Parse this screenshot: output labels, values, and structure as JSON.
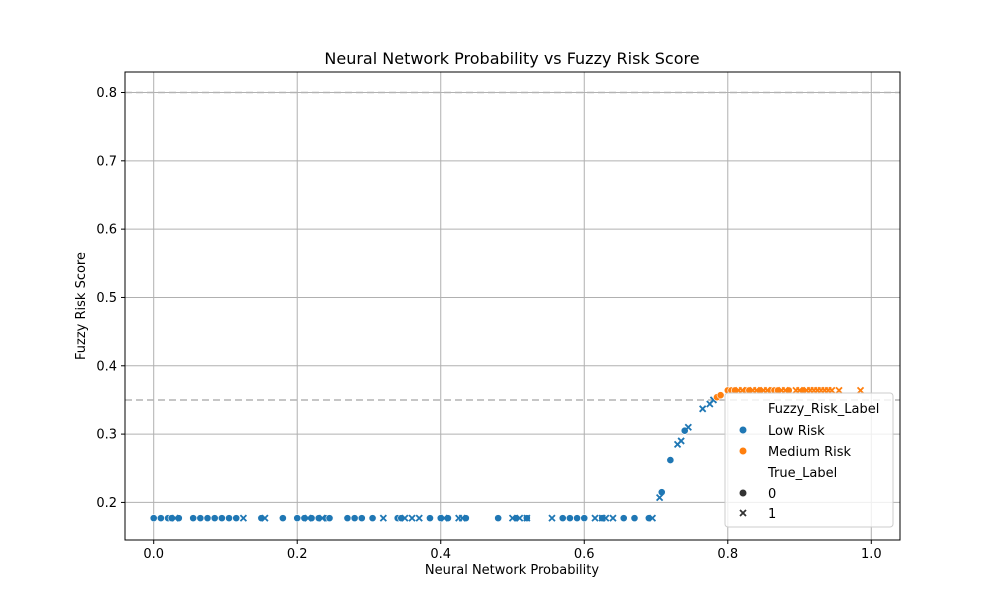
{
  "chart_data": {
    "type": "scatter",
    "title": "Neural Network Probability vs Fuzzy Risk Score",
    "xlabel": "Neural Network Probability",
    "ylabel": "Fuzzy Risk Score",
    "xlim": [
      -0.04,
      1.04
    ],
    "ylim": [
      0.145,
      0.83
    ],
    "xticks": [
      0.0,
      0.2,
      0.4,
      0.6,
      0.8,
      1.0
    ],
    "yticks": [
      0.2,
      0.3,
      0.4,
      0.5,
      0.6,
      0.7,
      0.8
    ],
    "grid": true,
    "reference_lines": [
      0.8,
      0.35
    ],
    "colors": {
      "Low Risk": "#1f77b4",
      "Medium Risk": "#ff7f0e",
      "grid": "#b0b0b0",
      "refline": "#b3b3b3"
    },
    "legend": {
      "placement": "lower-right",
      "hue_title": "Fuzzy_Risk_Label",
      "hue_items": [
        "Low Risk",
        "Medium Risk"
      ],
      "style_title": "True_Label",
      "style_items": [
        "0",
        "1"
      ]
    },
    "series": [
      {
        "label": "Low Risk",
        "marker": "circle",
        "x": [
          0.0,
          0.01,
          0.02,
          0.025,
          0.035,
          0.055,
          0.065,
          0.075,
          0.085,
          0.095,
          0.105,
          0.115,
          0.15,
          0.18,
          0.2,
          0.21,
          0.22,
          0.23,
          0.24,
          0.245,
          0.27,
          0.28,
          0.29,
          0.305,
          0.34,
          0.345,
          0.385,
          0.4,
          0.41,
          0.435,
          0.48,
          0.505,
          0.52,
          0.57,
          0.58,
          0.59,
          0.6,
          0.625,
          0.655,
          0.67,
          0.69,
          0.708,
          0.72,
          0.74
        ],
        "y": [
          0.177,
          0.177,
          0.177,
          0.177,
          0.177,
          0.177,
          0.177,
          0.177,
          0.177,
          0.177,
          0.177,
          0.177,
          0.177,
          0.177,
          0.177,
          0.177,
          0.177,
          0.177,
          0.177,
          0.177,
          0.177,
          0.177,
          0.177,
          0.177,
          0.177,
          0.177,
          0.177,
          0.177,
          0.177,
          0.177,
          0.177,
          0.177,
          0.177,
          0.177,
          0.177,
          0.177,
          0.177,
          0.177,
          0.177,
          0.177,
          0.177,
          0.215,
          0.262,
          0.305
        ]
      },
      {
        "label": "Low Risk",
        "marker": "x",
        "x": [
          0.03,
          0.125,
          0.155,
          0.215,
          0.235,
          0.32,
          0.35,
          0.36,
          0.37,
          0.405,
          0.425,
          0.43,
          0.5,
          0.51,
          0.52,
          0.555,
          0.615,
          0.625,
          0.63,
          0.64,
          0.695,
          0.705,
          0.73,
          0.735,
          0.745,
          0.765,
          0.775,
          0.78
        ],
        "y": [
          0.177,
          0.177,
          0.177,
          0.177,
          0.177,
          0.177,
          0.177,
          0.177,
          0.177,
          0.177,
          0.177,
          0.177,
          0.177,
          0.177,
          0.177,
          0.177,
          0.177,
          0.177,
          0.177,
          0.177,
          0.177,
          0.207,
          0.285,
          0.29,
          0.31,
          0.337,
          0.344,
          0.35
        ]
      },
      {
        "label": "Medium Risk",
        "marker": "circle",
        "x": [
          0.785,
          0.79,
          0.8,
          0.805,
          0.81,
          0.825,
          0.83,
          0.845,
          0.86,
          0.865,
          0.87,
          0.885,
          0.905
        ],
        "y": [
          0.354,
          0.357,
          0.364,
          0.364,
          0.364,
          0.364,
          0.364,
          0.364,
          0.364,
          0.364,
          0.364,
          0.364,
          0.364
        ]
      },
      {
        "label": "Medium Risk",
        "marker": "x",
        "x": [
          0.815,
          0.82,
          0.835,
          0.84,
          0.85,
          0.855,
          0.875,
          0.88,
          0.895,
          0.9,
          0.91,
          0.915,
          0.92,
          0.925,
          0.93,
          0.935,
          0.94,
          0.945,
          0.955,
          0.985
        ],
        "y": [
          0.364,
          0.364,
          0.364,
          0.364,
          0.364,
          0.364,
          0.364,
          0.364,
          0.364,
          0.364,
          0.364,
          0.364,
          0.364,
          0.364,
          0.364,
          0.364,
          0.364,
          0.364,
          0.364,
          0.364
        ]
      }
    ]
  }
}
